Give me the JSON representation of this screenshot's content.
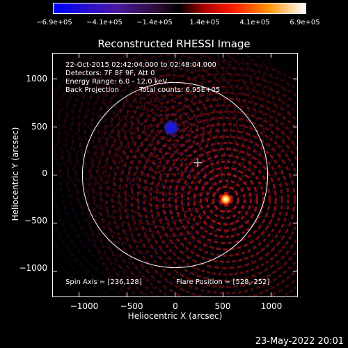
{
  "colorbar": {
    "ticks": [
      "−6.9e+05",
      "−4.1e+05",
      "−1.4e+05",
      "1.4e+05",
      "4.1e+05",
      "6.9e+05"
    ],
    "min": -690000,
    "max": 690000
  },
  "annotations": {
    "time_range": "22-Oct-2015 02:42:04.000 to 02:48:04.000",
    "detectors": "Detectors: 7F 8F 9F, Att 0",
    "energy_range": "Energy Range: 6.0 - 12.0 keV",
    "method": "Back Projection",
    "total_counts": "Total counts: 6.95E+05",
    "spin_axis": "Spin Axis = [236,128]",
    "flare_position": "Flare Position = [528,-252]"
  },
  "timestamp": "23-May-2022 20:01",
  "chart_data": {
    "type": "heatmap",
    "title": "Reconstructed RHESSI Image",
    "xlabel": "Heliocentric X (arcsec)",
    "ylabel": "Heliocentric Y (arcsec)",
    "xlim": [
      -1280,
      1280
    ],
    "ylim": [
      -1270,
      1270
    ],
    "xticks": [
      -1000,
      -500,
      0,
      500,
      1000
    ],
    "yticks": [
      -1000,
      -500,
      0,
      500,
      1000
    ],
    "xtick_labels": [
      "−1000",
      "−500",
      "0",
      "500",
      "1000"
    ],
    "ytick_labels": [
      "−1000",
      "−500",
      "0",
      "500",
      "1000"
    ],
    "solar_limb_radius": 965,
    "spin_axis": [
      236,
      128
    ],
    "sources": [
      {
        "x": 528,
        "y": -252,
        "sign": "positive"
      },
      {
        "x": -40,
        "y": 490,
        "sign": "negative"
      }
    ],
    "colors": {
      "limb": "#ffffff",
      "positive": "#ff2200",
      "negative": "#3333ff"
    }
  }
}
